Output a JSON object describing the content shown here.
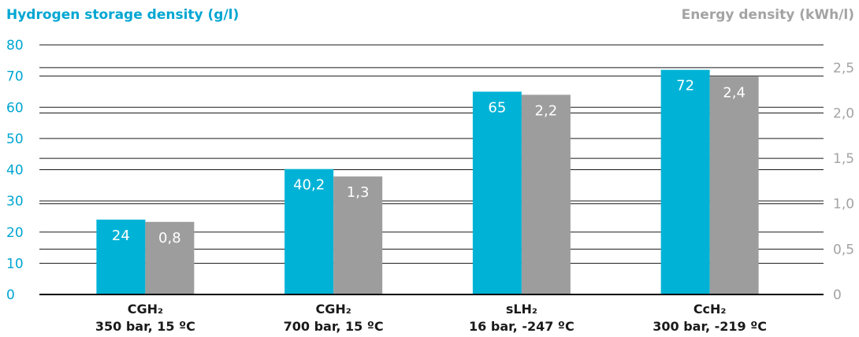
{
  "chart_data": {
    "type": "bar",
    "title": "",
    "ylabel_left": "Hydrogen storage density (g/l)",
    "ylabel_right": "Energy density (kWh/l)",
    "categories": [
      {
        "line1": "CGH₂",
        "line2": "350 bar, 15 ºC"
      },
      {
        "line1": "CGH₂",
        "line2": "700 bar, 15 ºC"
      },
      {
        "line1": "sLH₂",
        "line2": "16 bar, -247 ºC"
      },
      {
        "line1": "CcH₂",
        "line2": "300 bar, -219 ºC"
      }
    ],
    "series": [
      {
        "axis": "left",
        "color": "#00b3d6",
        "values": [
          24,
          40.2,
          65,
          72
        ],
        "labels": [
          "24",
          "40,2",
          "65",
          "72"
        ]
      },
      {
        "axis": "right",
        "color": "#9d9d9d",
        "values": [
          0.8,
          1.3,
          2.2,
          2.4
        ],
        "labels": [
          "0,8",
          "1,3",
          "2,2",
          "2,4"
        ]
      }
    ],
    "ylim_left": [
      0,
      80
    ],
    "yticks_left": [
      "0",
      "10",
      "20",
      "30",
      "40",
      "50",
      "60",
      "70",
      "80"
    ],
    "ylim_right": [
      0,
      2.75
    ],
    "yticks_right": [
      "0",
      "0,5",
      "1,0",
      "1,5",
      "2,0",
      "2,5"
    ],
    "grid": true,
    "colors": {
      "left_axis": "#00a6d2",
      "right_axis": "#a3a3a3"
    }
  }
}
